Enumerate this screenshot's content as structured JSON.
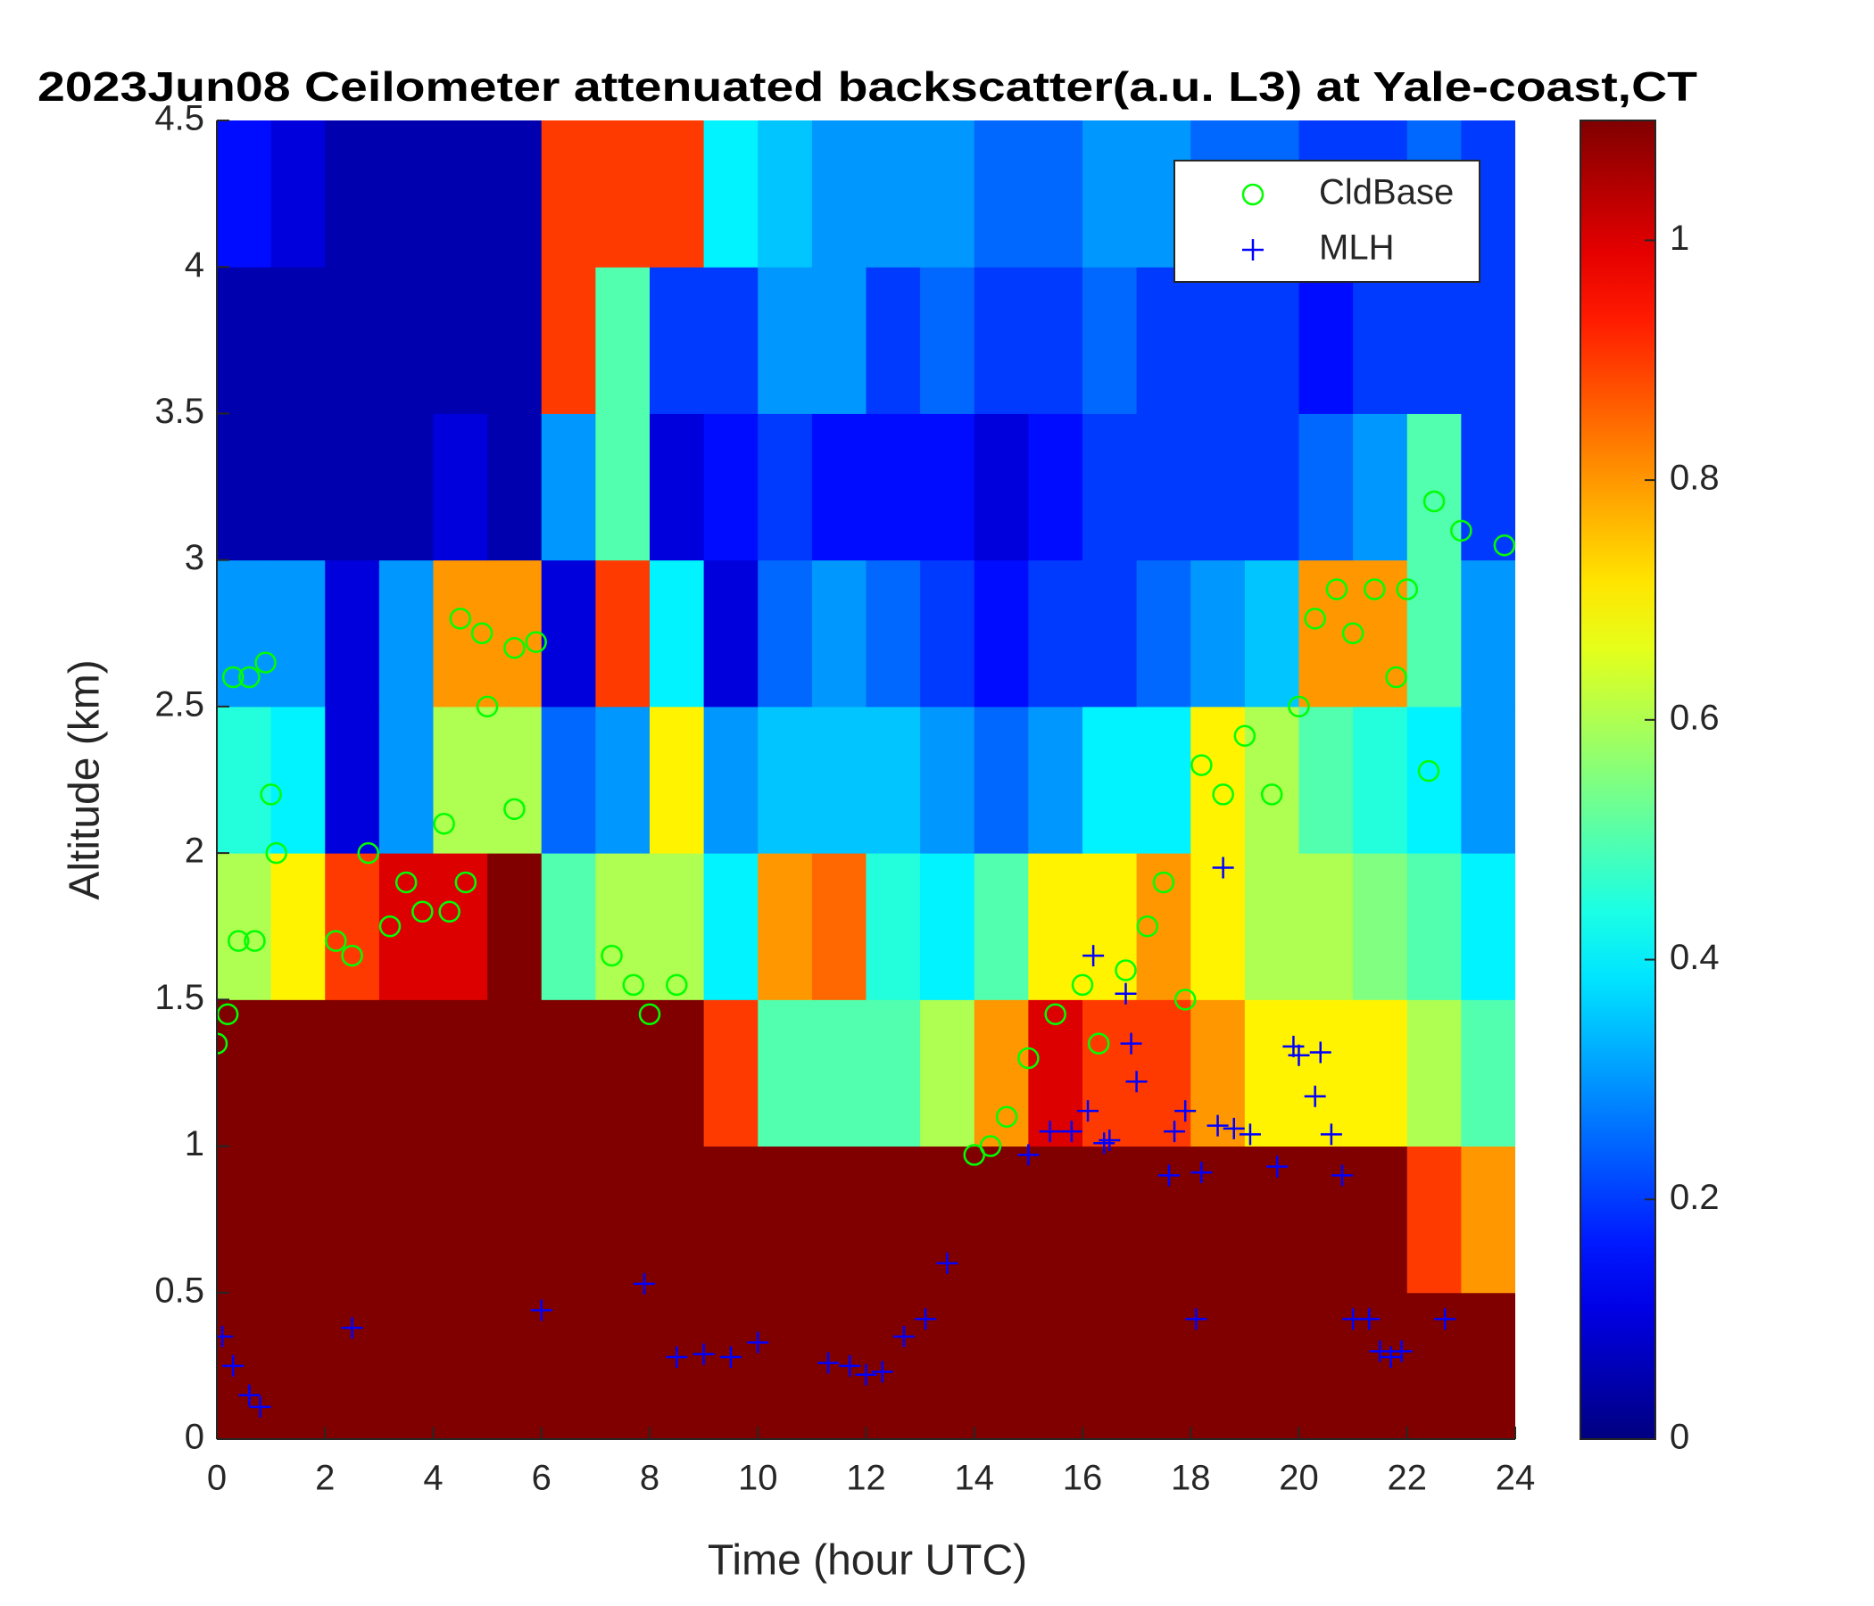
{
  "chart_data": {
    "type": "heatmap",
    "title": "2023Jun08 Ceilometer attenuated backscatter(a.u. L3) at Yale-coast,CT",
    "xlabel": "Time (hour UTC)",
    "ylabel": "Altitude (km)",
    "xlim": [
      0,
      24
    ],
    "ylim": [
      0,
      4.5
    ],
    "xticks": [
      0,
      2,
      4,
      6,
      8,
      10,
      12,
      14,
      16,
      18,
      20,
      22,
      24
    ],
    "yticks": [
      0,
      0.5,
      1,
      1.5,
      2,
      2.5,
      3,
      3.5,
      4,
      4.5
    ],
    "colormap": "jet",
    "colorbar_lim": [
      0,
      1.1
    ],
    "colorbar_ticks": [
      0,
      0.2,
      0.4,
      0.6,
      0.8,
      1
    ],
    "xbins": [
      0,
      1,
      2,
      3,
      4,
      5,
      6,
      7,
      8,
      9,
      10,
      11,
      12,
      13,
      14,
      15,
      16,
      17,
      18,
      19,
      20,
      21,
      22,
      23,
      24
    ],
    "ybins": [
      0,
      0.5,
      1,
      1.5,
      2,
      2.5,
      3,
      3.5,
      4,
      4.5
    ],
    "z": [
      [
        1.1,
        1.1,
        1.1,
        1.1,
        1.1,
        1.1,
        1.1,
        1.1,
        1.1,
        1.1,
        1.1,
        1.1,
        1.1,
        1.1,
        1.1,
        1.1,
        1.1,
        1.1,
        1.1,
        1.1,
        1.1,
        1.1,
        1.1,
        1.1
      ],
      [
        1.1,
        1.1,
        1.1,
        1.1,
        1.1,
        1.1,
        1.1,
        1.1,
        1.1,
        1.1,
        1.1,
        1.1,
        1.1,
        1.1,
        1.1,
        1.1,
        1.1,
        1.1,
        1.1,
        1.1,
        1.1,
        1.1,
        0.9,
        0.8
      ],
      [
        1.1,
        1.1,
        1.1,
        1.1,
        1.1,
        1.1,
        1.1,
        1.1,
        1.1,
        0.9,
        0.5,
        0.5,
        0.5,
        0.6,
        0.8,
        1.0,
        0.9,
        0.9,
        0.8,
        0.7,
        0.7,
        0.7,
        0.6,
        0.5
      ],
      [
        0.6,
        0.7,
        0.9,
        1.0,
        1.0,
        1.1,
        0.5,
        0.6,
        0.6,
        0.4,
        0.8,
        0.85,
        0.45,
        0.4,
        0.5,
        0.7,
        0.7,
        0.8,
        0.7,
        0.6,
        0.6,
        0.55,
        0.5,
        0.4
      ],
      [
        0.45,
        0.4,
        0.1,
        0.3,
        0.6,
        0.6,
        0.25,
        0.3,
        0.7,
        0.3,
        0.35,
        0.35,
        0.35,
        0.3,
        0.25,
        0.3,
        0.4,
        0.4,
        0.7,
        0.6,
        0.5,
        0.45,
        0.4,
        0.3
      ],
      [
        0.3,
        0.3,
        0.1,
        0.3,
        0.8,
        0.8,
        0.1,
        0.9,
        0.4,
        0.1,
        0.25,
        0.3,
        0.25,
        0.2,
        0.15,
        0.2,
        0.2,
        0.25,
        0.3,
        0.35,
        0.8,
        0.8,
        0.5,
        0.3
      ],
      [
        0.05,
        0.05,
        0.05,
        0.05,
        0.1,
        0.05,
        0.3,
        0.5,
        0.1,
        0.15,
        0.2,
        0.15,
        0.15,
        0.15,
        0.1,
        0.15,
        0.2,
        0.2,
        0.2,
        0.2,
        0.25,
        0.3,
        0.5,
        0.2
      ],
      [
        0.05,
        0.05,
        0.05,
        0.05,
        0.05,
        0.05,
        0.9,
        0.5,
        0.2,
        0.2,
        0.3,
        0.3,
        0.2,
        0.25,
        0.2,
        0.2,
        0.25,
        0.2,
        0.2,
        0.2,
        0.15,
        0.2,
        0.2,
        0.2
      ],
      [
        0.15,
        0.1,
        0.05,
        0.05,
        0.05,
        0.05,
        0.9,
        0.9,
        0.9,
        0.4,
        0.35,
        0.3,
        0.3,
        0.3,
        0.25,
        0.25,
        0.3,
        0.3,
        0.25,
        0.25,
        0.2,
        0.2,
        0.25,
        0.2
      ]
    ],
    "legend": "upper right",
    "series": [
      {
        "name": "CldBase",
        "marker": "circle",
        "color": "#00ff00",
        "x": [
          0,
          0.2,
          0.3,
          0.6,
          0.9,
          0.4,
          0.7,
          1.0,
          1.1,
          2.2,
          2.5,
          2.8,
          3.2,
          3.5,
          3.8,
          4.2,
          4.3,
          4.6,
          4.5,
          4.9,
          5.0,
          5.5,
          5.9,
          5.5,
          7.3,
          7.7,
          8.0,
          8.5,
          14.0,
          14.3,
          14.6,
          15.0,
          15.5,
          16.0,
          16.3,
          16.8,
          17.2,
          17.5,
          17.9,
          18.2,
          18.6,
          19.0,
          19.5,
          20.0,
          20.3,
          20.7,
          21.0,
          21.4,
          21.8,
          22.0,
          22.5,
          22.4,
          23.0,
          23.8
        ],
        "values": [
          1.35,
          1.45,
          2.6,
          2.6,
          2.65,
          1.7,
          1.7,
          2.2,
          2.0,
          1.7,
          1.65,
          2.0,
          1.75,
          1.9,
          1.8,
          2.1,
          1.8,
          1.9,
          2.8,
          2.75,
          2.5,
          2.7,
          2.72,
          2.15,
          1.65,
          1.55,
          1.45,
          1.55,
          0.97,
          1.0,
          1.1,
          1.3,
          1.45,
          1.55,
          1.35,
          1.6,
          1.75,
          1.9,
          1.5,
          2.3,
          2.2,
          2.4,
          2.2,
          2.5,
          2.8,
          2.9,
          2.75,
          2.9,
          2.6,
          2.9,
          3.2,
          2.28,
          3.1,
          3.05
        ]
      },
      {
        "name": "MLH",
        "marker": "plus",
        "color": "#0000ff",
        "x": [
          0.1,
          0.3,
          0.6,
          0.8,
          2.5,
          6.0,
          7.9,
          8.5,
          9.0,
          9.5,
          10.0,
          11.3,
          11.7,
          12.0,
          12.3,
          12.7,
          13.1,
          13.5,
          15.0,
          15.4,
          15.8,
          16.1,
          16.2,
          16.4,
          16.5,
          16.8,
          16.9,
          17.0,
          17.6,
          17.7,
          17.9,
          18.1,
          18.2,
          18.5,
          18.6,
          18.8,
          19.1,
          19.6,
          19.9,
          20.0,
          20.3,
          20.4,
          20.6,
          20.8,
          21.0,
          21.3,
          21.5,
          21.7,
          21.9,
          22.7
        ],
        "values": [
          0.35,
          0.25,
          0.15,
          0.11,
          0.38,
          0.44,
          0.53,
          0.28,
          0.29,
          0.28,
          0.33,
          0.26,
          0.25,
          0.22,
          0.23,
          0.35,
          0.41,
          0.6,
          0.97,
          1.05,
          1.05,
          1.12,
          1.65,
          1.01,
          1.02,
          1.52,
          1.35,
          1.22,
          0.9,
          1.05,
          1.12,
          0.41,
          0.91,
          1.07,
          1.95,
          1.06,
          1.04,
          0.93,
          1.34,
          1.31,
          1.17,
          1.32,
          1.04,
          0.9,
          0.41,
          0.41,
          0.3,
          0.28,
          0.3,
          0.41
        ]
      }
    ]
  }
}
